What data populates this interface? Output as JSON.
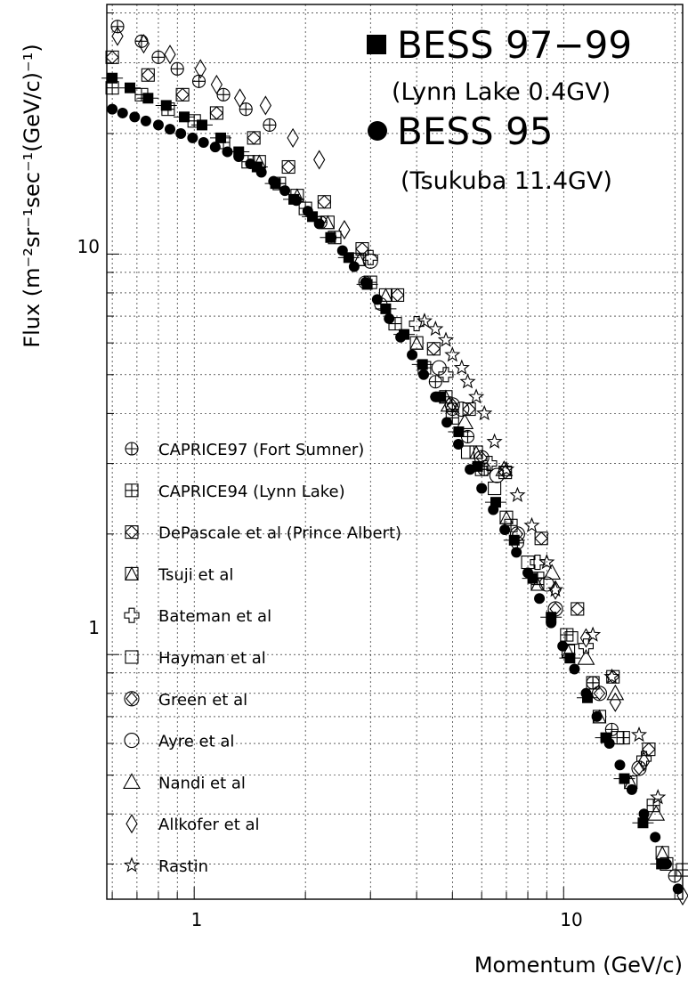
{
  "chart_data": {
    "type": "scatter",
    "xlabel": "Momentum (GeV/c)",
    "ylabel": "Flux (m⁻²sr⁻¹sec⁻¹(GeV/c)⁻¹)",
    "x_scale": "log",
    "y_scale": "log",
    "xlim": [
      0.58,
      21
    ],
    "ylim": [
      0.245,
      42
    ],
    "grid": true,
    "x_tick_labels": [
      "1",
      "10"
    ],
    "y_tick_labels": [
      "1",
      "10"
    ],
    "legend_placement": "lower-left",
    "annotations": [
      {
        "text": "BESS 97−99",
        "marker": "filled-square"
      },
      {
        "text": "(Lynn Lake 0.4GV)"
      },
      {
        "text": "BESS 95",
        "marker": "filled-circle"
      },
      {
        "text": "(Tsukuba 11.4GV)"
      }
    ],
    "series": [
      {
        "name": "BESS 97-99",
        "marker": "filled-square",
        "x": [
          0.6,
          0.67,
          0.75,
          0.84,
          0.94,
          1.05,
          1.18,
          1.32,
          1.48,
          1.66,
          1.86,
          2.09,
          2.34,
          2.62,
          2.94,
          3.3,
          3.7,
          4.15,
          4.65,
          5.2,
          5.85,
          6.55,
          7.35,
          8.25,
          9.25,
          10.4,
          11.6,
          13.0,
          14.6,
          16.4,
          18.4,
          20.6
        ],
        "y": [
          27.5,
          26,
          24.5,
          23.5,
          22,
          21,
          19.5,
          18,
          16.5,
          15,
          13.7,
          12.4,
          11,
          9.8,
          8.4,
          7.3,
          6.3,
          5.3,
          4.4,
          3.6,
          2.95,
          2.4,
          1.93,
          1.55,
          1.24,
          0.98,
          0.78,
          0.62,
          0.49,
          0.38,
          0.3,
          0.24
        ]
      },
      {
        "name": "BESS 95",
        "marker": "filled-circle",
        "x": [
          0.6,
          0.64,
          0.69,
          0.74,
          0.8,
          0.86,
          0.92,
          0.99,
          1.06,
          1.14,
          1.23,
          1.32,
          1.42,
          1.52,
          1.64,
          1.76,
          1.89,
          2.03,
          2.18,
          2.35,
          2.52,
          2.71,
          2.91,
          3.13,
          3.37,
          3.62,
          3.89,
          4.18,
          4.5,
          4.83,
          5.19,
          5.58,
          6.0,
          6.45,
          6.93,
          7.45,
          8.0,
          8.6,
          9.25,
          9.94,
          10.7,
          11.5,
          12.3,
          13.3,
          14.2,
          15.3,
          16.5,
          17.7,
          19.0,
          20.4
        ],
        "y": [
          23,
          22.5,
          22,
          21.5,
          21,
          20.5,
          20,
          19.5,
          19,
          18.5,
          18,
          17.5,
          16.8,
          16,
          15.2,
          14.4,
          13.6,
          12.8,
          11.9,
          11,
          10.2,
          9.3,
          8.5,
          7.7,
          6.9,
          6.2,
          5.6,
          5,
          4.4,
          3.8,
          3.35,
          2.9,
          2.6,
          2.3,
          2.05,
          1.8,
          1.6,
          1.38,
          1.2,
          1.05,
          0.92,
          0.8,
          0.7,
          0.6,
          0.53,
          0.46,
          0.4,
          0.35,
          0.3,
          0.26
        ]
      },
      {
        "name": "CAPRICE97 (Fort Sumner)",
        "marker": "circle-plus",
        "x": [
          0.62,
          0.72,
          0.8,
          0.9,
          1.03,
          1.2,
          1.38,
          1.6,
          2.2,
          2.9,
          3.2,
          4.5,
          5.0,
          5.5,
          6.1,
          7.5,
          12,
          13.5,
          20
        ],
        "y": [
          37,
          34,
          31,
          29,
          27,
          25,
          23,
          21,
          12,
          8.5,
          7.5,
          4.8,
          4.1,
          3.5,
          2.9,
          1.9,
          0.85,
          0.65,
          0.28
        ]
      },
      {
        "name": "CAPRICE94 (Lynn Lake)",
        "marker": "square-plus",
        "x": [
          0.6,
          0.72,
          0.85,
          1.0,
          1.2,
          1.4,
          1.7,
          2.0,
          2.4,
          3.0,
          3.5,
          4.2,
          5.0,
          6.0,
          7.2,
          8.5,
          10.2,
          12,
          14.5,
          17.5,
          21
        ],
        "y": [
          26,
          25,
          23,
          21.5,
          19,
          17,
          15,
          13,
          11,
          8.5,
          6.7,
          5.2,
          3.9,
          2.9,
          2.1,
          1.55,
          1.12,
          0.85,
          0.62,
          0.42,
          0.29
        ]
      },
      {
        "name": "DePascale et al (Prince Albert)",
        "marker": "square-diamond",
        "x": [
          0.6,
          0.75,
          0.93,
          1.15,
          1.45,
          1.8,
          2.25,
          2.85,
          3.55,
          4.45,
          5.55,
          6.95,
          8.7,
          10.9,
          13.6,
          17
        ],
        "y": [
          31,
          28,
          25,
          22.5,
          19.5,
          16.5,
          13.5,
          10.3,
          7.9,
          5.8,
          4.1,
          2.85,
          1.95,
          1.3,
          0.88,
          0.58
        ]
      },
      {
        "name": "Tsuji et al",
        "marker": "square-triangle",
        "x": [
          1.5,
          1.9,
          2.3,
          2.8,
          3.3,
          4.0,
          4.8,
          5.8,
          7.0,
          8.5,
          10.3,
          12.5,
          15.2,
          18.5
        ],
        "y": [
          17,
          14,
          12,
          9.7,
          7.9,
          6.0,
          4.4,
          3.2,
          2.2,
          1.5,
          1.02,
          0.7,
          0.48,
          0.32
        ]
      }
    ],
    "legend_entries": [
      {
        "label": "CAPRICE97 (Fort Sumner)",
        "marker": "circle-plus"
      },
      {
        "label": "CAPRICE94 (Lynn Lake)",
        "marker": "square-plus"
      },
      {
        "label": "DePascale et al (Prince Albert)",
        "marker": "square-diamond"
      },
      {
        "label": "Tsuji et al",
        "marker": "square-triangle"
      },
      {
        "label": "Bateman et al",
        "marker": "open-cross"
      },
      {
        "label": "Hayman et al",
        "marker": "open-square"
      },
      {
        "label": "Green et al",
        "marker": "circle-diamond"
      },
      {
        "label": "Ayre et al",
        "marker": "open-circle"
      },
      {
        "label": "Nandi et al",
        "marker": "open-triangle"
      },
      {
        "label": "Allkofer et al",
        "marker": "open-diamond"
      },
      {
        "label": "Rastin",
        "marker": "open-star"
      }
    ],
    "extra_series": [
      {
        "marker": "open-cross",
        "x": [
          3.0,
          4.0,
          4.8,
          6.3,
          8.5,
          11.5,
          16.5
        ],
        "y": [
          9.8,
          6.7,
          5.0,
          3.0,
          1.7,
          1.05,
          0.55
        ]
      },
      {
        "marker": "open-square",
        "x": [
          5.5,
          6.5,
          8.0,
          10.5,
          14,
          19
        ],
        "y": [
          3.2,
          2.6,
          1.7,
          1.1,
          0.62,
          0.3
        ]
      },
      {
        "marker": "circle-diamond",
        "x": [
          5.0,
          6.0,
          7.5,
          9.5,
          12.5,
          16
        ],
        "y": [
          4.2,
          3.1,
          2.0,
          1.3,
          0.8,
          0.52
        ]
      },
      {
        "marker": "open-circle",
        "x": [
          3.0,
          4.6,
          5.3,
          6.6,
          9.0
        ],
        "y": [
          9.6,
          5.2,
          4.1,
          2.8,
          1.5
        ]
      },
      {
        "marker": "open-triangle",
        "x": [
          4.9,
          5.4,
          6.9,
          9.3,
          11.5,
          13.8,
          17.8
        ],
        "y": [
          4.2,
          3.8,
          2.9,
          1.6,
          0.98,
          0.8,
          0.4
        ]
      },
      {
        "marker": "open-diamond",
        "x": [
          0.62,
          0.73,
          0.86,
          1.04,
          1.15,
          1.33,
          1.56,
          1.85,
          2.18,
          2.55,
          9.5,
          11.5,
          13.8,
          16.5,
          21
        ],
        "y": [
          35,
          33.5,
          31.5,
          29,
          26.5,
          24.5,
          23.5,
          19.5,
          17.2,
          11.5,
          1.45,
          1.1,
          0.76,
          0.54,
          0.25
        ]
      },
      {
        "marker": "open-star",
        "x": [
          4.2,
          4.5,
          4.8,
          5.0,
          5.3,
          5.5,
          5.8,
          6.1,
          6.5,
          7.0,
          7.5,
          8.2,
          9.0,
          9.5,
          12.0,
          13.5,
          16.0,
          18.0
        ],
        "y": [
          6.8,
          6.5,
          6.1,
          5.6,
          5.2,
          4.8,
          4.4,
          4.0,
          3.4,
          2.9,
          2.5,
          2.1,
          1.7,
          1.45,
          1.12,
          0.88,
          0.63,
          0.44
        ]
      }
    ]
  }
}
